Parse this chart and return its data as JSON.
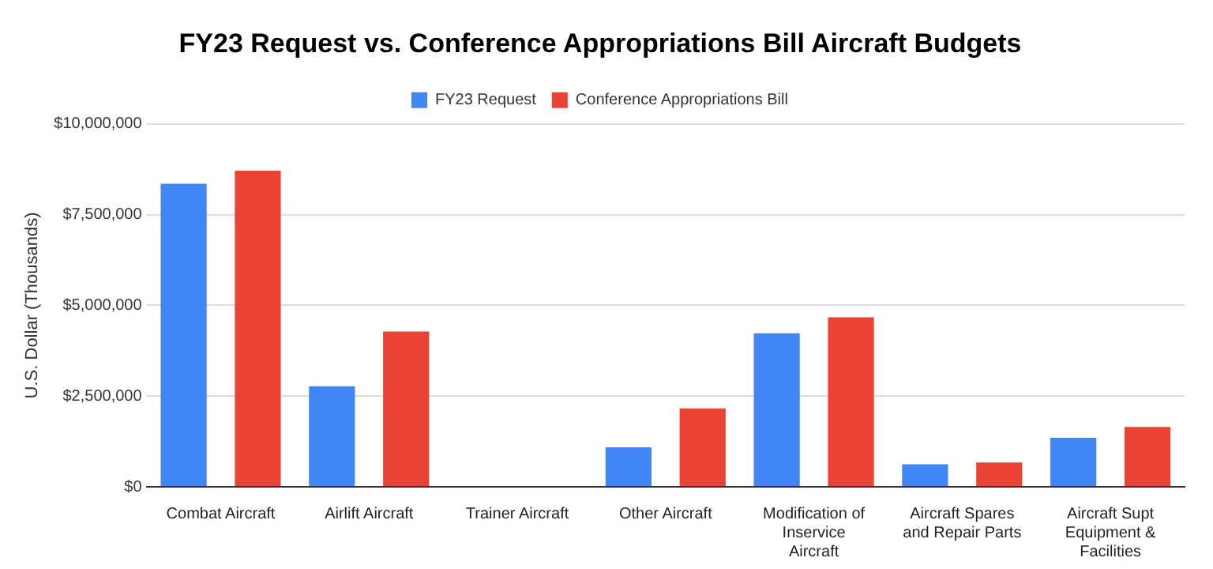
{
  "chart_data": {
    "type": "bar",
    "title": "FY23 Request vs. Conference Appropriations Bill Aircraft Budgets",
    "ylabel": "U.S. Dollar (Thousands)",
    "categories": [
      "Combat Aircraft",
      "Airlift Aircraft",
      "Trainer Aircraft",
      "Other Aircraft",
      "Modification of Inservice Aircraft",
      "Aircraft Spares and Repair Parts",
      "Aircraft Supt Equipment & Facilities"
    ],
    "series": [
      {
        "name": "FY23 Request",
        "color": "#4285f4",
        "values": [
          8350000,
          2770000,
          0,
          1090000,
          4230000,
          620000,
          1350000
        ]
      },
      {
        "name": "Conference Appropriations Bill",
        "color": "#ea4335",
        "values": [
          8710000,
          4280000,
          0,
          2160000,
          4670000,
          670000,
          1650000
        ]
      }
    ],
    "ylim": [
      0,
      10000000
    ],
    "yticks": [
      {
        "value": 0,
        "label": "$0"
      },
      {
        "value": 2500000,
        "label": "$2,500,000"
      },
      {
        "value": 5000000,
        "label": "$5,000,000"
      },
      {
        "value": 7500000,
        "label": "$7,500,000"
      },
      {
        "value": 10000000,
        "label": "$10,000,000"
      }
    ],
    "grid": "y",
    "legend": "top"
  }
}
